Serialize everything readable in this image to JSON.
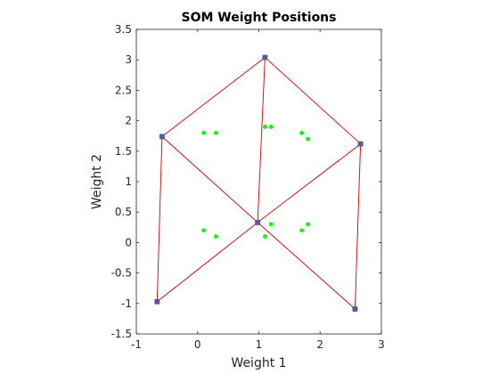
{
  "chart_data": {
    "type": "scatter",
    "title": "SOM Weight Positions",
    "xlabel": "Weight 1",
    "ylabel": "Weight 2",
    "xlim": [
      -1,
      3
    ],
    "ylim": [
      -1.5,
      3.5
    ],
    "xticks": [
      -1,
      0,
      1,
      2,
      3
    ],
    "xtick_labels": [
      "-1",
      "0",
      "1",
      "2",
      "3"
    ],
    "yticks": [
      -1.5,
      -1,
      -0.5,
      0,
      0.5,
      1,
      1.5,
      2,
      2.5,
      3,
      3.5
    ],
    "ytick_labels": [
      "-1.5",
      "-1",
      "-0.5",
      "0",
      "0.5",
      "1",
      "1.5",
      "2",
      "2.5",
      "3",
      "3.5"
    ],
    "grid": false,
    "series": [
      {
        "role": "data",
        "color": "#00ff00",
        "points": [
          [
            0.1,
            1.8
          ],
          [
            0.3,
            1.8
          ],
          [
            1.1,
            1.9
          ],
          [
            1.2,
            1.9
          ],
          [
            1.7,
            1.8
          ],
          [
            1.8,
            1.7
          ],
          [
            0.1,
            0.2
          ],
          [
            0.3,
            0.1
          ],
          [
            1.1,
            0.1
          ],
          [
            1.2,
            0.3
          ],
          [
            1.7,
            0.2
          ],
          [
            1.8,
            0.3
          ]
        ]
      },
      {
        "role": "neurons",
        "color": "#5a5a9c",
        "points": [
          [
            -0.58,
            1.74
          ],
          [
            1.1,
            3.04
          ],
          [
            2.66,
            1.62
          ],
          [
            0.98,
            0.33
          ],
          [
            -0.66,
            -0.97
          ],
          [
            2.57,
            -1.09
          ]
        ]
      },
      {
        "role": "connections",
        "color": "#cc0000",
        "edges": [
          [
            0,
            1
          ],
          [
            1,
            2
          ],
          [
            0,
            3
          ],
          [
            1,
            3
          ],
          [
            2,
            3
          ],
          [
            0,
            4
          ],
          [
            3,
            4
          ],
          [
            3,
            5
          ],
          [
            2,
            5
          ]
        ]
      }
    ]
  }
}
